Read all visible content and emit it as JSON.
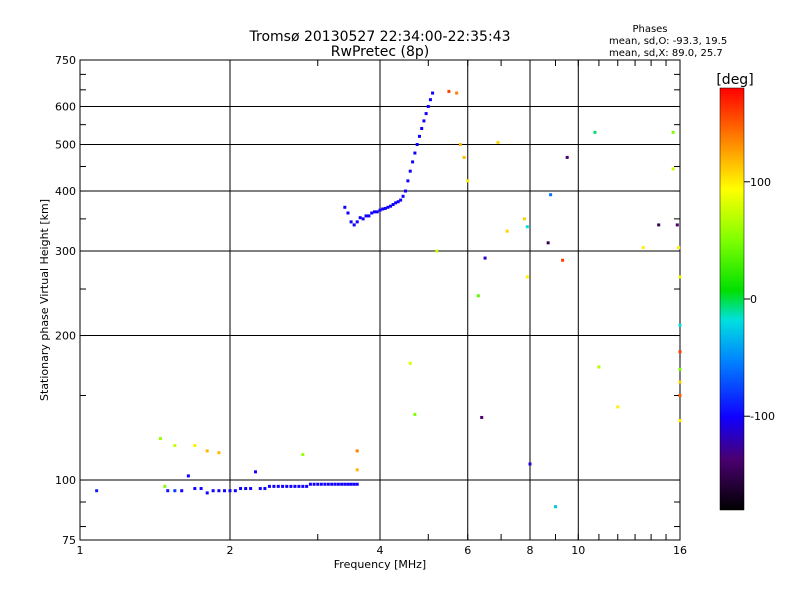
{
  "chart_data": {
    "type": "scatter",
    "title": "Tromsø 20130527 22:34:00-22:35:43",
    "subtitle": "RwPretec (8p)",
    "stats": {
      "heading": "Phases",
      "line1": "mean, sd,O: -93.3, 19.5",
      "line2": "mean, sd,X:  89.0, 25.7"
    },
    "xlabel": "Frequency [MHz]",
    "ylabel": "Stationary phase Virtual Height [km]",
    "x_scale": "log",
    "y_scale": "log",
    "xlim": [
      1,
      16
    ],
    "ylim": [
      75,
      750
    ],
    "x_ticks": [
      1,
      2,
      4,
      6,
      8,
      10,
      16
    ],
    "x_tick_labels": [
      "1",
      "2",
      "4",
      "6",
      "8",
      "10",
      "16"
    ],
    "y_ticks": [
      75,
      100,
      200,
      300,
      400,
      500,
      600,
      750
    ],
    "y_tick_labels": [
      "75",
      "100",
      "200",
      "300",
      "400",
      "500",
      "600",
      "750"
    ],
    "grid": true,
    "colorbar": {
      "label": "[deg]",
      "range": [
        -180,
        180
      ],
      "ticks": [
        100,
        0,
        -100
      ],
      "tick_labels": [
        "100",
        "0",
        "-100"
      ]
    },
    "series": [
      {
        "points": [
          [
            1.08,
            95,
            -90
          ],
          [
            1.48,
            97,
            40
          ],
          [
            1.5,
            95,
            -95
          ],
          [
            1.55,
            95,
            -80
          ],
          [
            1.6,
            95,
            -100
          ],
          [
            1.65,
            102,
            -100
          ],
          [
            1.7,
            96,
            -100
          ],
          [
            1.75,
            96,
            -100
          ],
          [
            1.8,
            94,
            -100
          ],
          [
            1.85,
            95,
            -100
          ],
          [
            1.9,
            95,
            -100
          ],
          [
            1.95,
            95,
            -100
          ],
          [
            2.0,
            95,
            -100
          ],
          [
            2.05,
            95,
            -100
          ],
          [
            2.1,
            96,
            -100
          ],
          [
            2.15,
            96,
            -100
          ],
          [
            2.2,
            96,
            -100
          ],
          [
            2.25,
            104,
            -100
          ],
          [
            2.3,
            96,
            -100
          ],
          [
            2.35,
            96,
            -100
          ],
          [
            2.4,
            97,
            -100
          ],
          [
            2.45,
            97,
            -100
          ],
          [
            2.5,
            97,
            -100
          ],
          [
            2.55,
            97,
            -100
          ],
          [
            2.6,
            97,
            -100
          ],
          [
            2.65,
            97,
            -100
          ],
          [
            2.7,
            97,
            -100
          ],
          [
            2.75,
            97,
            -100
          ],
          [
            2.8,
            97,
            -100
          ],
          [
            2.85,
            97,
            -100
          ],
          [
            2.9,
            98,
            -100
          ],
          [
            2.95,
            98,
            -100
          ],
          [
            3.0,
            98,
            -100
          ],
          [
            3.05,
            98,
            -100
          ],
          [
            3.1,
            98,
            -100
          ],
          [
            3.15,
            98,
            -100
          ],
          [
            3.2,
            98,
            -100
          ],
          [
            3.25,
            98,
            -100
          ],
          [
            3.3,
            98,
            -100
          ],
          [
            3.35,
            98,
            -100
          ],
          [
            3.4,
            98,
            -100
          ],
          [
            3.45,
            98,
            -100
          ],
          [
            3.5,
            98,
            -100
          ],
          [
            3.55,
            98,
            -100
          ],
          [
            3.6,
            98,
            -100
          ],
          [
            3.4,
            370,
            -100
          ],
          [
            3.45,
            360,
            -100
          ],
          [
            3.5,
            345,
            -100
          ],
          [
            3.55,
            340,
            -100
          ],
          [
            3.6,
            345,
            -100
          ],
          [
            3.65,
            352,
            -100
          ],
          [
            3.7,
            350,
            -100
          ],
          [
            3.75,
            355,
            -100
          ],
          [
            3.8,
            355,
            -100
          ],
          [
            3.85,
            360,
            -100
          ],
          [
            3.9,
            362,
            -100
          ],
          [
            3.95,
            362,
            -100
          ],
          [
            4.0,
            365,
            -100
          ],
          [
            4.05,
            367,
            -100
          ],
          [
            4.1,
            368,
            -100
          ],
          [
            4.15,
            370,
            -100
          ],
          [
            4.2,
            372,
            -100
          ],
          [
            4.25,
            375,
            -100
          ],
          [
            4.3,
            378,
            -100
          ],
          [
            4.35,
            380,
            -100
          ],
          [
            4.4,
            383,
            -100
          ],
          [
            4.45,
            390,
            -100
          ],
          [
            4.5,
            400,
            -100
          ],
          [
            4.55,
            420,
            -100
          ],
          [
            4.6,
            440,
            -100
          ],
          [
            4.65,
            460,
            -100
          ],
          [
            4.7,
            480,
            -100
          ],
          [
            4.75,
            500,
            -100
          ],
          [
            4.8,
            520,
            -100
          ],
          [
            4.85,
            540,
            -100
          ],
          [
            4.9,
            560,
            -100
          ],
          [
            4.95,
            580,
            -100
          ],
          [
            5.0,
            600,
            -100
          ],
          [
            5.05,
            620,
            -100
          ],
          [
            5.1,
            640,
            -100
          ],
          [
            1.45,
            122,
            50
          ],
          [
            1.55,
            118,
            70
          ],
          [
            1.7,
            118,
            100
          ],
          [
            1.8,
            115,
            120
          ],
          [
            1.9,
            114,
            120
          ],
          [
            2.8,
            113,
            50
          ],
          [
            3.6,
            115,
            140
          ],
          [
            3.6,
            105,
            120
          ],
          [
            4.6,
            175,
            80
          ],
          [
            4.7,
            137,
            40
          ],
          [
            5.2,
            300,
            70
          ],
          [
            5.5,
            645,
            160
          ],
          [
            5.7,
            640,
            140
          ],
          [
            5.8,
            500,
            120
          ],
          [
            5.9,
            470,
            120
          ],
          [
            6.0,
            420,
            100
          ],
          [
            6.3,
            242,
            30
          ],
          [
            6.4,
            135,
            -140
          ],
          [
            6.5,
            290,
            -120
          ],
          [
            6.9,
            505,
            110
          ],
          [
            7.2,
            330,
            110
          ],
          [
            7.8,
            350,
            110
          ],
          [
            7.9,
            337,
            -20
          ],
          [
            7.9,
            265,
            100
          ],
          [
            8.0,
            108,
            -110
          ],
          [
            8.7,
            312,
            -150
          ],
          [
            8.8,
            393,
            -60
          ],
          [
            9.0,
            88,
            -30
          ],
          [
            9.3,
            287,
            160
          ],
          [
            9.5,
            470,
            -140
          ],
          [
            10.8,
            530,
            -10
          ],
          [
            11.0,
            172,
            60
          ],
          [
            12.0,
            142,
            100
          ],
          [
            13.5,
            305,
            100
          ],
          [
            14.5,
            340,
            -150
          ],
          [
            15.5,
            530,
            40
          ],
          [
            15.5,
            445,
            70
          ],
          [
            15.8,
            340,
            -140
          ],
          [
            15.9,
            305,
            100
          ],
          [
            16.0,
            265,
            90
          ],
          [
            16.0,
            210,
            -20
          ],
          [
            16.0,
            185,
            160
          ],
          [
            16.0,
            170,
            40
          ],
          [
            16.0,
            160,
            110
          ],
          [
            16.0,
            150,
            150
          ],
          [
            16.0,
            133,
            100
          ]
        ]
      }
    ]
  }
}
